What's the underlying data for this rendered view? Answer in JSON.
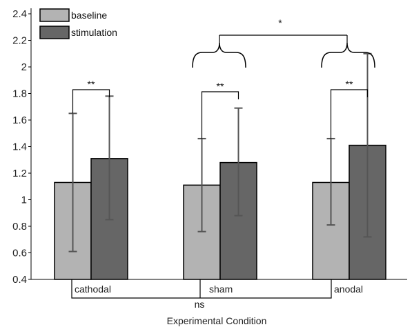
{
  "chart_data": {
    "type": "bar",
    "xlabel": "Experimental Condition",
    "categories": [
      "cathodal",
      "sham",
      "anodal"
    ],
    "ylim": [
      0.4,
      2.4
    ],
    "yticks": [
      "0.4",
      "0.6",
      "0.8",
      "1",
      "1.2",
      "1.4",
      "1.6",
      "1.8",
      "2",
      "2.2",
      "2.4"
    ],
    "series": [
      {
        "name": "baseline",
        "color": "#b3b3b3",
        "values": [
          1.13,
          1.11,
          1.13
        ],
        "err_low": [
          0.61,
          0.76,
          0.81
        ],
        "err_high": [
          1.65,
          1.46,
          1.46
        ]
      },
      {
        "name": "stimulation",
        "color": "#666666",
        "values": [
          1.31,
          1.28,
          1.41
        ],
        "err_low": [
          0.85,
          0.88,
          0.72
        ],
        "err_high": [
          1.78,
          1.69,
          2.1
        ]
      }
    ],
    "significance": {
      "within": [
        "**",
        "**",
        "**"
      ],
      "between_top": "*",
      "between_bottom": "ns"
    },
    "legend_position": "top-left",
    "grid": false
  }
}
